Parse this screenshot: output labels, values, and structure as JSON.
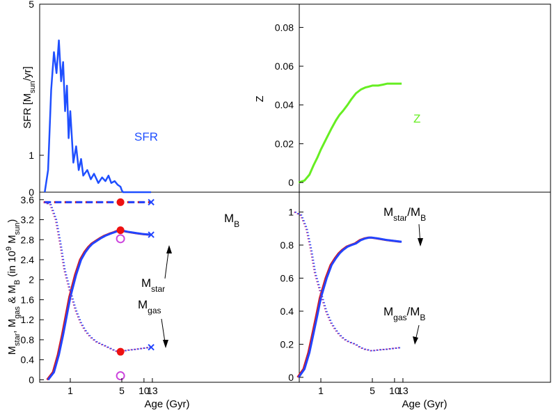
{
  "chart_data": [
    {
      "type": "line",
      "panel": "top-left",
      "ylabel": "SFR [M",
      "ylabel_sub": "sun",
      "ylabel_end": "/yr]",
      "ylim": [
        0,
        5
      ],
      "y_scale": "log-like",
      "yticks": [
        "0",
        "1",
        "5"
      ],
      "x_scale": "log",
      "xlim": [
        0.3,
        25
      ],
      "series": [
        {
          "name": "SFR",
          "color": "#1f4fff",
          "x": [
            0.45,
            0.5,
            0.55,
            0.6,
            0.65,
            0.7,
            0.75,
            0.8,
            0.85,
            0.9,
            0.95,
            1.0,
            1.1,
            1.2,
            1.3,
            1.4,
            1.5,
            1.7,
            1.9,
            2.1,
            2.4,
            2.7,
            3.0,
            3.3,
            3.6,
            4.0,
            4.4,
            4.8,
            5.0,
            5.2,
            6,
            8,
            10,
            12.5
          ],
          "y": [
            0,
            0.6,
            2.0,
            3.0,
            2.4,
            3.4,
            2.2,
            2.7,
            1.6,
            2.1,
            1.2,
            1.6,
            0.8,
            1.1,
            0.6,
            0.9,
            0.45,
            0.6,
            0.35,
            0.5,
            0.25,
            0.4,
            0.3,
            0.45,
            0.25,
            0.3,
            0.2,
            0.15,
            0.05,
            0,
            0,
            0,
            0,
            0
          ]
        }
      ],
      "annotations": [
        {
          "text": "SFR",
          "color": "#1f4fff"
        }
      ]
    },
    {
      "type": "line",
      "panel": "top-right",
      "ylabel": "Z",
      "ylim": [
        -0.005,
        0.092
      ],
      "yticks": [
        "0",
        "0.02",
        "0.04",
        "0.06",
        "0.08"
      ],
      "x_scale": "log",
      "xlim": [
        0.3,
        25
      ],
      "series": [
        {
          "name": "Z",
          "color": "#66ee22",
          "x": [
            0.5,
            0.6,
            0.7,
            0.8,
            0.9,
            1.0,
            1.2,
            1.4,
            1.6,
            1.8,
            2.0,
            2.3,
            2.6,
            3.0,
            3.5,
            4.0,
            4.5,
            5.0,
            6,
            7,
            8,
            10,
            12.5
          ],
          "y": [
            0.0,
            0.001,
            0.004,
            0.009,
            0.013,
            0.017,
            0.023,
            0.028,
            0.032,
            0.035,
            0.037,
            0.04,
            0.043,
            0.046,
            0.048,
            0.049,
            0.0495,
            0.05,
            0.05,
            0.0505,
            0.051,
            0.051,
            0.051
          ]
        }
      ],
      "annotations": [
        {
          "text": "Z",
          "color": "#66ee22"
        }
      ]
    },
    {
      "type": "line",
      "panel": "bottom-left",
      "xlabel": "Age (Gyr)",
      "ylabel_parts": [
        "M",
        "star",
        ", M",
        "gas",
        " & M",
        "B",
        " (in 10",
        "9",
        " M",
        "sun",
        ")"
      ],
      "ylim": [
        -0.05,
        3.75
      ],
      "yticks": [
        "0",
        "0.4",
        "0.8",
        "1.2",
        "1.6",
        "2",
        "2.4",
        "2.8",
        "3.2",
        "3.6"
      ],
      "xticks": [
        "1",
        "5",
        "10",
        "13"
      ],
      "x_scale": "log",
      "xlim": [
        0.3,
        25
      ],
      "series": [
        {
          "name": "M_B",
          "style": "dashed",
          "color": "#2244ff",
          "x": [
            0.45,
            1,
            2,
            3,
            4.8,
            8,
            12.5
          ],
          "y": [
            3.55,
            3.55,
            3.55,
            3.55,
            3.55,
            3.55,
            3.55
          ]
        },
        {
          "name": "M_star",
          "style": "solid",
          "color": "#2244ff",
          "x": [
            0.5,
            0.6,
            0.7,
            0.8,
            0.9,
            1.0,
            1.2,
            1.4,
            1.6,
            1.8,
            2.0,
            2.3,
            2.6,
            3.0,
            3.5,
            4.0,
            4.5,
            4.8,
            6,
            8,
            10,
            12.5
          ],
          "y": [
            0.0,
            0.15,
            0.5,
            0.9,
            1.3,
            1.65,
            2.1,
            2.4,
            2.55,
            2.65,
            2.72,
            2.78,
            2.83,
            2.88,
            2.92,
            2.95,
            2.98,
            2.99,
            2.96,
            2.93,
            2.91,
            2.9
          ]
        },
        {
          "name": "M_gas",
          "style": "dotted",
          "color": "#2244ff",
          "x": [
            0.45,
            0.55,
            0.65,
            0.75,
            0.85,
            1.0,
            1.2,
            1.4,
            1.6,
            1.8,
            2.0,
            2.3,
            2.6,
            3.0,
            3.5,
            4.0,
            4.5,
            4.8,
            6,
            8,
            10,
            12.5
          ],
          "y": [
            3.55,
            3.5,
            3.2,
            2.7,
            2.2,
            1.8,
            1.4,
            1.15,
            1.0,
            0.9,
            0.83,
            0.76,
            0.72,
            0.68,
            0.63,
            0.59,
            0.56,
            0.56,
            0.59,
            0.61,
            0.63,
            0.65
          ]
        }
      ],
      "markers": {
        "red_dots": [
          {
            "x": 4.8,
            "y": 3.55
          },
          {
            "x": 4.8,
            "y": 2.99
          },
          {
            "x": 4.8,
            "y": 0.56
          }
        ],
        "magenta_circles": [
          {
            "x": 4.8,
            "y": 2.82
          },
          {
            "x": 4.8,
            "y": 0.08
          }
        ],
        "blue_crosses": [
          {
            "x": 12.5,
            "y": 3.55
          },
          {
            "x": 12.5,
            "y": 2.9
          },
          {
            "x": 12.5,
            "y": 0.65
          }
        ]
      },
      "annotations": [
        {
          "text": "M",
          "sub": "B"
        },
        {
          "text": "M",
          "sub": "star"
        },
        {
          "text": "M",
          "sub": "gas"
        }
      ]
    },
    {
      "type": "line",
      "panel": "bottom-right",
      "xlabel": "Age (Gyr)",
      "ylim": [
        -0.03,
        1.12
      ],
      "yticks": [
        "0",
        "0.2",
        "0.4",
        "0.6",
        "0.8",
        "1"
      ],
      "xticks": [
        "1",
        "5",
        "10",
        "13"
      ],
      "x_scale": "log",
      "xlim": [
        0.3,
        25
      ],
      "series": [
        {
          "name": "M_star/M_B",
          "style": "solid",
          "color": "#2244ff",
          "x": [
            0.5,
            0.6,
            0.7,
            0.8,
            0.9,
            1.0,
            1.2,
            1.4,
            1.6,
            1.8,
            2.0,
            2.3,
            2.6,
            3.0,
            3.5,
            4.0,
            4.5,
            5.0,
            6,
            8,
            10,
            12.5
          ],
          "y": [
            0.0,
            0.05,
            0.15,
            0.27,
            0.38,
            0.48,
            0.6,
            0.68,
            0.72,
            0.75,
            0.77,
            0.79,
            0.8,
            0.81,
            0.83,
            0.84,
            0.845,
            0.845,
            0.84,
            0.83,
            0.825,
            0.82
          ]
        },
        {
          "name": "M_gas/M_B",
          "style": "dotted",
          "color": "#2244ff",
          "x": [
            0.45,
            0.55,
            0.65,
            0.75,
            0.85,
            1.0,
            1.2,
            1.4,
            1.6,
            1.8,
            2.0,
            2.3,
            2.6,
            3.0,
            3.5,
            4.0,
            4.5,
            5.0,
            6,
            8,
            10,
            12.5
          ],
          "y": [
            1.0,
            0.98,
            0.9,
            0.77,
            0.63,
            0.52,
            0.4,
            0.33,
            0.29,
            0.26,
            0.24,
            0.22,
            0.21,
            0.2,
            0.18,
            0.17,
            0.165,
            0.16,
            0.165,
            0.17,
            0.175,
            0.18
          ]
        }
      ],
      "annotations": [
        {
          "text": "M",
          "sub": "star",
          "rest": "/M",
          "sub2": "B"
        },
        {
          "text": "M",
          "sub": "gas",
          "rest": "/M",
          "sub2": "B"
        }
      ]
    }
  ]
}
